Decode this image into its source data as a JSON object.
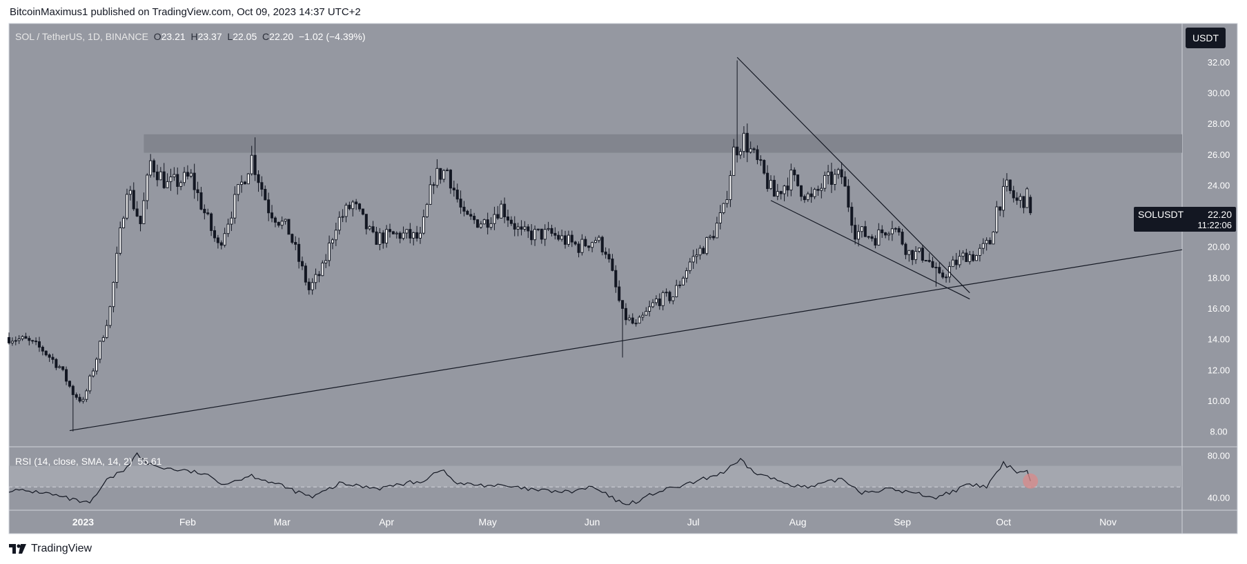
{
  "header": {
    "published_by": "BitcoinMaximus1 published on TradingView.com, Oct 09, 2023 14:37 UTC+2"
  },
  "legend": {
    "symbol": "SOL / TetherUS, 1D, BINANCE",
    "open_label": "O",
    "open": "23.21",
    "high_label": "H",
    "high": "23.37",
    "low_label": "L",
    "low": "22.05",
    "close_label": "C",
    "close": "22.20",
    "change": "−1.02 (−4.39%)"
  },
  "currency_button": "USDT",
  "price_tag": {
    "symbol": "SOLUSDT",
    "price": "22.20",
    "countdown": "11:22:06"
  },
  "rsi_legend": {
    "label": "RSI (14, close, SMA, 14, 2)",
    "value": "55.61"
  },
  "footer": {
    "brand": "TradingView"
  },
  "colors": {
    "plot_bg": "#9598a1",
    "rsi_band": "#a4a7af",
    "resistance_band": "#82858e",
    "candle": "#131722",
    "line": "#131722",
    "highlight": "#d98a8a"
  },
  "chart_data": [
    {
      "type": "candlestick",
      "title": "SOL / TetherUS, 1D, BINANCE",
      "ylim": [
        7.0,
        34.5
      ],
      "yticks": [
        8.0,
        10.0,
        12.0,
        14.0,
        16.0,
        18.0,
        20.0,
        22.0,
        24.0,
        26.0,
        28.0,
        30.0,
        32.0
      ],
      "ytick_labels": [
        "8.00",
        "10.00",
        "12.00",
        "14.00",
        "16.00",
        "18.00",
        "20.00",
        "22.00",
        "24.00",
        "26.00",
        "28.00",
        "30.00",
        "32.00"
      ],
      "x_range": [
        "2022-12-10",
        "2023-11-23"
      ],
      "x_ticks": [
        {
          "date": "2023-01-01",
          "label": "2023"
        },
        {
          "date": "2023-02-01",
          "label": "Feb"
        },
        {
          "date": "2023-03-01",
          "label": "Mar"
        },
        {
          "date": "2023-04-01",
          "label": "Apr"
        },
        {
          "date": "2023-05-01",
          "label": "May"
        },
        {
          "date": "2023-06-01",
          "label": "Jun"
        },
        {
          "date": "2023-07-01",
          "label": "Jul"
        },
        {
          "date": "2023-08-01",
          "label": "Aug"
        },
        {
          "date": "2023-09-01",
          "label": "Sep"
        },
        {
          "date": "2023-10-01",
          "label": "Oct"
        },
        {
          "date": "2023-11-01",
          "label": "Nov"
        }
      ],
      "close_anchors": [
        [
          "2022-12-10",
          14.1
        ],
        [
          "2022-12-15",
          13.9
        ],
        [
          "2022-12-20",
          13.3
        ],
        [
          "2022-12-25",
          12.2
        ],
        [
          "2022-12-29",
          10.5
        ],
        [
          "2023-01-01",
          9.9
        ],
        [
          "2023-01-05",
          12.8
        ],
        [
          "2023-01-09",
          16.0
        ],
        [
          "2023-01-14",
          24.0
        ],
        [
          "2023-01-18",
          21.5
        ],
        [
          "2023-01-21",
          25.5
        ],
        [
          "2023-01-26",
          24.0
        ],
        [
          "2023-02-02",
          24.5
        ],
        [
          "2023-02-06",
          22.2
        ],
        [
          "2023-02-10",
          20.0
        ],
        [
          "2023-02-16",
          23.5
        ],
        [
          "2023-02-20",
          25.8
        ],
        [
          "2023-02-25",
          22.5
        ],
        [
          "2023-03-03",
          21.0
        ],
        [
          "2023-03-09",
          17.2
        ],
        [
          "2023-03-13",
          18.5
        ],
        [
          "2023-03-17",
          21.5
        ],
        [
          "2023-03-22",
          22.8
        ],
        [
          "2023-03-28",
          20.5
        ],
        [
          "2023-04-05",
          20.8
        ],
        [
          "2023-04-11",
          20.5
        ],
        [
          "2023-04-15",
          24.5
        ],
        [
          "2023-04-19",
          25.0
        ],
        [
          "2023-04-24",
          21.8
        ],
        [
          "2023-04-30",
          21.6
        ],
        [
          "2023-05-05",
          22.6
        ],
        [
          "2023-05-11",
          20.8
        ],
        [
          "2023-05-20",
          20.8
        ],
        [
          "2023-05-28",
          20.0
        ],
        [
          "2023-06-02",
          20.5
        ],
        [
          "2023-06-05",
          19.8
        ],
        [
          "2023-06-10",
          15.6
        ],
        [
          "2023-06-14",
          14.8
        ],
        [
          "2023-06-20",
          16.5
        ],
        [
          "2023-06-25",
          16.8
        ],
        [
          "2023-06-30",
          19.0
        ],
        [
          "2023-07-06",
          20.5
        ],
        [
          "2023-07-10",
          22.3
        ],
        [
          "2023-07-13",
          26.2
        ],
        [
          "2023-07-16",
          27.0
        ],
        [
          "2023-07-21",
          25.0
        ],
        [
          "2023-07-25",
          23.3
        ],
        [
          "2023-07-30",
          24.5
        ],
        [
          "2023-08-05",
          23.0
        ],
        [
          "2023-08-09",
          24.2
        ],
        [
          "2023-08-14",
          24.6
        ],
        [
          "2023-08-18",
          21.0
        ],
        [
          "2023-08-24",
          20.6
        ],
        [
          "2023-08-29",
          21.5
        ],
        [
          "2023-09-03",
          19.6
        ],
        [
          "2023-09-08",
          19.4
        ],
        [
          "2023-09-12",
          17.9
        ],
        [
          "2023-09-16",
          18.8
        ],
        [
          "2023-09-20",
          19.5
        ],
        [
          "2023-09-23",
          19.4
        ],
        [
          "2023-09-27",
          20.3
        ],
        [
          "2023-09-29",
          22.5
        ],
        [
          "2023-10-02",
          23.8
        ],
        [
          "2023-10-05",
          22.9
        ],
        [
          "2023-10-08",
          23.2
        ],
        [
          "2023-10-09",
          22.2
        ]
      ],
      "key_extremes": [
        {
          "date": "2022-12-29",
          "low": 8.0
        },
        {
          "date": "2023-02-21",
          "high": 27.1
        },
        {
          "date": "2023-06-10",
          "low": 12.8
        },
        {
          "date": "2023-07-14",
          "high": 32.1
        },
        {
          "date": "2023-09-11",
          "low": 17.4
        }
      ],
      "last_candle": {
        "date": "2023-10-09",
        "open": 23.21,
        "high": 23.37,
        "low": 22.05,
        "close": 22.2
      },
      "resistance_zone": {
        "from": "2023-01-19",
        "to": "2023-11-23",
        "low": 26.1,
        "high": 27.3
      },
      "trendlines": [
        {
          "name": "ascending support",
          "points": [
            [
              "2022-12-28",
              8.05
            ],
            [
              "2023-11-23",
              19.8
            ]
          ]
        },
        {
          "name": "wedge upper",
          "points": [
            [
              "2023-07-14",
              32.3
            ],
            [
              "2023-09-21",
              17.0
            ]
          ]
        },
        {
          "name": "wedge lower",
          "points": [
            [
              "2023-07-24",
              23.0
            ],
            [
              "2023-09-21",
              16.6
            ]
          ]
        }
      ],
      "grid": false
    },
    {
      "type": "line",
      "title": "RSI (14, close, SMA, 14, 2)",
      "ylim": [
        28,
        88
      ],
      "yticks": [
        40,
        80
      ],
      "ytick_labels": [
        "40.00",
        "80.00"
      ],
      "band": [
        50,
        70
      ],
      "midline": 50,
      "last_value": 55.61,
      "anchors": [
        [
          "2022-12-10",
          47
        ],
        [
          "2022-12-20",
          45
        ],
        [
          "2022-12-30",
          37
        ],
        [
          "2023-01-03",
          34
        ],
        [
          "2023-01-08",
          56
        ],
        [
          "2023-01-13",
          66
        ],
        [
          "2023-01-17",
          81
        ],
        [
          "2023-01-20",
          72
        ],
        [
          "2023-01-25",
          68
        ],
        [
          "2023-02-05",
          63
        ],
        [
          "2023-02-12",
          53
        ],
        [
          "2023-02-20",
          61
        ],
        [
          "2023-02-28",
          52
        ],
        [
          "2023-03-10",
          40
        ],
        [
          "2023-03-18",
          53
        ],
        [
          "2023-03-30",
          49
        ],
        [
          "2023-04-06",
          53
        ],
        [
          "2023-04-12",
          56
        ],
        [
          "2023-04-17",
          67
        ],
        [
          "2023-04-22",
          53
        ],
        [
          "2023-05-05",
          51
        ],
        [
          "2023-05-15",
          47
        ],
        [
          "2023-05-25",
          45
        ],
        [
          "2023-06-01",
          50
        ],
        [
          "2023-06-05",
          43
        ],
        [
          "2023-06-10",
          34
        ],
        [
          "2023-06-14",
          36
        ],
        [
          "2023-06-20",
          45
        ],
        [
          "2023-06-30",
          53
        ],
        [
          "2023-07-10",
          64
        ],
        [
          "2023-07-15",
          75
        ],
        [
          "2023-07-19",
          64
        ],
        [
          "2023-07-27",
          55
        ],
        [
          "2023-08-04",
          49
        ],
        [
          "2023-08-14",
          58
        ],
        [
          "2023-08-20",
          45
        ],
        [
          "2023-08-28",
          48
        ],
        [
          "2023-09-05",
          44
        ],
        [
          "2023-09-11",
          40
        ],
        [
          "2023-09-16",
          46
        ],
        [
          "2023-09-21",
          52
        ],
        [
          "2023-09-26",
          50
        ],
        [
          "2023-10-01",
          72
        ],
        [
          "2023-10-05",
          65
        ],
        [
          "2023-10-08",
          65
        ],
        [
          "2023-10-09",
          55.61
        ]
      ]
    }
  ]
}
